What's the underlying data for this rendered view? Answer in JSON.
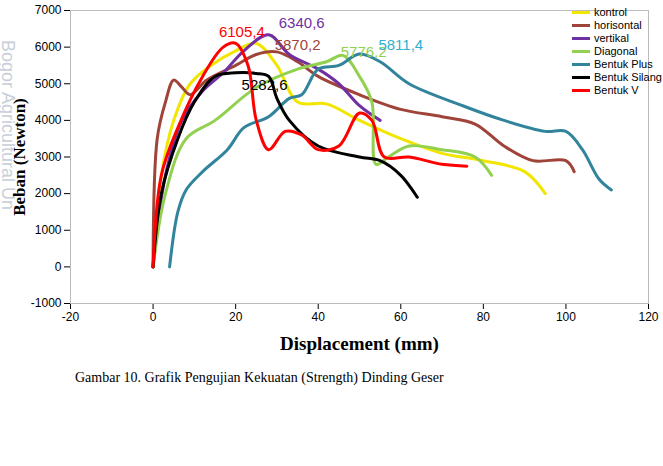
{
  "chart_data": {
    "type": "line",
    "caption": "Gambar 10. Grafik Pengujian Kekuatan (Strength) Dinding Geser",
    "watermark": "Bogor Agricultural Un",
    "x_label": "Displacement (mm)",
    "y_label": "Beban (Newton)",
    "xlim": [
      -20,
      120
    ],
    "xticks": [
      -20,
      0,
      20,
      40,
      60,
      80,
      100,
      120
    ],
    "ylim": [
      -1000,
      7000
    ],
    "yticks": [
      -1000,
      0,
      1000,
      2000,
      3000,
      4000,
      5000,
      6000,
      7000
    ],
    "grid": false,
    "legend": "top-right",
    "series": [
      {
        "name": "kontrol",
        "color": "#f2e600",
        "x": [
          0,
          2,
          5,
          9,
          14,
          20,
          25,
          30,
          35,
          42,
          50,
          60,
          70,
          80,
          90,
          95
        ],
        "values": [
          0,
          2500,
          4000,
          5000,
          5500,
          5900,
          6100,
          5500,
          4500,
          4450,
          4000,
          3500,
          3100,
          2900,
          2600,
          2000
        ]
      },
      {
        "name": "horisontal",
        "color": "#a0443a",
        "x": [
          0,
          1,
          3,
          5,
          7,
          9,
          13,
          20,
          25,
          30,
          35,
          40,
          50,
          60,
          70,
          78,
          85,
          92,
          100,
          102
        ],
        "values": [
          0,
          3500,
          4500,
          5100,
          4900,
          4700,
          5100,
          5500,
          5800,
          5870,
          5600,
          5200,
          4700,
          4300,
          4100,
          3900,
          3300,
          2900,
          2900,
          2600
        ]
      },
      {
        "name": "vertikal",
        "color": "#7030a0",
        "x": [
          0,
          3,
          7,
          12,
          17,
          22,
          28,
          33,
          40,
          45,
          50,
          55
        ],
        "values": [
          0,
          2500,
          4000,
          4800,
          5300,
          5900,
          6340,
          5800,
          5400,
          5000,
          4400,
          4000
        ]
      },
      {
        "name": "Diagonal",
        "color": "#92d050",
        "x": [
          0,
          3,
          8,
          15,
          25,
          35,
          42,
          46,
          50,
          53,
          54,
          57,
          62,
          70,
          78,
          82
        ],
        "values": [
          0,
          2000,
          3500,
          4000,
          4900,
          5400,
          5600,
          5776,
          5200,
          4500,
          2800,
          3000,
          3300,
          3200,
          3000,
          2500
        ]
      },
      {
        "name": "Bentuk Plus",
        "color": "#31849b",
        "x": [
          4,
          6,
          8,
          12,
          18,
          22,
          28,
          33,
          36,
          40,
          45,
          50,
          55,
          62,
          75,
          85,
          95,
          100,
          104,
          108,
          111
        ],
        "values": [
          0,
          1500,
          2100,
          2600,
          3200,
          3800,
          4100,
          4600,
          4700,
          5400,
          5500,
          5811,
          5600,
          5000,
          4400,
          4000,
          3700,
          3700,
          3200,
          2400,
          2100
        ]
      },
      {
        "name": "Bentuk Silang",
        "color": "#000000",
        "x": [
          0,
          2,
          6,
          10,
          15,
          20,
          25,
          28,
          30,
          33,
          40,
          50,
          55,
          60,
          64
        ],
        "values": [
          0,
          2000,
          3500,
          4500,
          5200,
          5300,
          5282,
          5200,
          4600,
          4000,
          3300,
          3000,
          2900,
          2500,
          1900
        ]
      },
      {
        "name": "Bentuk V",
        "color": "#ff0000",
        "x": [
          0,
          2,
          6,
          12,
          17,
          20,
          23,
          25,
          28,
          32,
          36,
          40,
          45,
          50,
          53,
          56,
          62,
          70,
          76
        ],
        "values": [
          0,
          2500,
          3800,
          5200,
          6000,
          6105,
          5500,
          4000,
          3200,
          3700,
          3600,
          3200,
          3300,
          4200,
          4000,
          3000,
          3000,
          2800,
          2750
        ]
      }
    ],
    "annotations": [
      {
        "text": "6105,4",
        "value": 6105.4,
        "x": 21.5,
        "y": 6400,
        "color": "#ff0000"
      },
      {
        "text": "6340,6",
        "value": 6340.6,
        "x": 36,
        "y": 6650,
        "color": "#7030a0"
      },
      {
        "text": "5870,2",
        "value": 5870.2,
        "x": 35,
        "y": 6050,
        "color": "#a0443a"
      },
      {
        "text": "5776,2",
        "value": 5776.2,
        "x": 51,
        "y": 5850,
        "color": "#92d050"
      },
      {
        "text": "5811,4",
        "value": 5811.4,
        "x": 60,
        "y": 6050,
        "color": "#31b0d0"
      },
      {
        "text": "5282,6",
        "value": 5282.6,
        "x": 27,
        "y": 4950,
        "color": "#000000"
      }
    ]
  }
}
